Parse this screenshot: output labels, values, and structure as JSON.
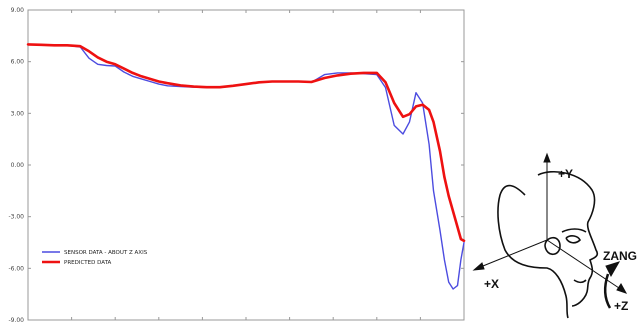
{
  "chart_data": {
    "type": "line",
    "title": "",
    "xlabel": "",
    "ylabel": "",
    "ylim": [
      -9.0,
      9.0
    ],
    "yticks": [
      "9.00",
      "6.00",
      "3.00",
      "0.00",
      "-3.00",
      "-6.00",
      "-9.00"
    ],
    "ytick_values": [
      9,
      6,
      3,
      0,
      -3,
      -6,
      -9
    ],
    "xlim": [
      0,
      100
    ],
    "xtick_count": 10,
    "grid": false,
    "legend_position": "bottom-left",
    "x": [
      0,
      3,
      6,
      9,
      12,
      14,
      16,
      18,
      20,
      22,
      24,
      26,
      28,
      30,
      32,
      35,
      38,
      41,
      44,
      47,
      50,
      53,
      56,
      59,
      62,
      65,
      68,
      71,
      74,
      77,
      80,
      82,
      84,
      86,
      87.5,
      89,
      90.5,
      92,
      93,
      94.5,
      95.5,
      96.5,
      97.5,
      98.5,
      99.3,
      100
    ],
    "series": [
      {
        "name": "SENSOR DATA - ABOUT Z AXIS",
        "color": "#4c4ce0",
        "values": [
          7.0,
          6.98,
          6.95,
          6.95,
          6.85,
          6.2,
          5.85,
          5.78,
          5.75,
          5.4,
          5.15,
          5.0,
          4.85,
          4.7,
          4.6,
          4.55,
          4.52,
          4.5,
          4.5,
          4.58,
          4.7,
          4.8,
          4.85,
          4.85,
          4.85,
          4.8,
          5.25,
          5.35,
          5.35,
          5.3,
          5.25,
          4.5,
          2.3,
          1.8,
          2.5,
          4.2,
          3.6,
          1.2,
          -1.5,
          -3.8,
          -5.5,
          -6.8,
          -7.2,
          -7.0,
          -5.5,
          -4.5
        ]
      },
      {
        "name": "PREDICTED DATA",
        "color": "#ee1111",
        "values": [
          7.0,
          6.98,
          6.95,
          6.95,
          6.9,
          6.6,
          6.25,
          6.0,
          5.85,
          5.6,
          5.35,
          5.15,
          5.0,
          4.85,
          4.75,
          4.62,
          4.55,
          4.52,
          4.52,
          4.6,
          4.7,
          4.8,
          4.85,
          4.85,
          4.85,
          4.82,
          5.05,
          5.2,
          5.3,
          5.35,
          5.35,
          4.8,
          3.6,
          2.8,
          2.95,
          3.4,
          3.5,
          3.2,
          2.5,
          0.8,
          -0.7,
          -1.8,
          -2.7,
          -3.6,
          -4.3,
          -4.4
        ]
      }
    ]
  },
  "diagram": {
    "axis_y_label": "+Y",
    "axis_x_label": "+X",
    "axis_z_label": "+Z",
    "rotation_label": "ZANG"
  }
}
